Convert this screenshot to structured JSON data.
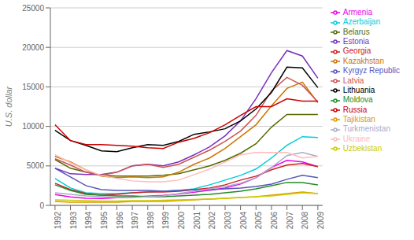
{
  "chart_data": {
    "type": "line",
    "x": [
      1992,
      1993,
      1994,
      1995,
      1996,
      1997,
      1998,
      1999,
      2000,
      2001,
      2002,
      2003,
      2004,
      2005,
      2006,
      2007,
      2008,
      2009
    ],
    "xlim": [
      1991.7,
      2009.3
    ],
    "xticks": [
      1992,
      1993,
      1994,
      1995,
      1996,
      1997,
      1998,
      1999,
      2000,
      2001,
      2002,
      2003,
      2004,
      2005,
      2006,
      2007,
      2008,
      2009
    ],
    "ylabel": "U.S. dollar",
    "ylim": [
      0,
      25000
    ],
    "yticks": [
      0,
      5000,
      10000,
      15000,
      20000,
      25000
    ],
    "grid": true,
    "legend": "right",
    "series": [
      {
        "name": "Armenia",
        "color": "#EE00EE",
        "values": [
          1380,
          1060,
          900,
          870,
          960,
          1070,
          1160,
          1280,
          1450,
          1680,
          1920,
          2200,
          2700,
          3500,
          4800,
          5700,
          5500,
          4900
        ]
      },
      {
        "name": "Azerbaijan",
        "color": "#00CCDD",
        "values": [
          3400,
          2200,
          1600,
          1500,
          1500,
          1600,
          1700,
          1800,
          1900,
          2100,
          2600,
          3200,
          3800,
          4600,
          6000,
          7600,
          8700,
          8600
        ]
      },
      {
        "name": "Belarus",
        "color": "#556B00",
        "values": [
          5800,
          4700,
          4200,
          3800,
          3700,
          3700,
          3700,
          3800,
          4000,
          4500,
          5000,
          5700,
          6600,
          7800,
          9900,
          11500,
          11500,
          11500
        ]
      },
      {
        "name": "Estonia",
        "color": "#7B2FBE",
        "values": [
          4700,
          4000,
          3900,
          3900,
          4200,
          5000,
          5200,
          5000,
          5500,
          6400,
          7400,
          8800,
          10700,
          13500,
          16800,
          19600,
          18900,
          16100
        ]
      },
      {
        "name": "Georgia",
        "color": "#CC2222",
        "values": [
          2800,
          2000,
          1500,
          1300,
          1400,
          1600,
          1700,
          1700,
          1800,
          2000,
          2200,
          2600,
          3200,
          3700,
          4500,
          5100,
          5300,
          4900
        ]
      },
      {
        "name": "Kazakhstan",
        "color": "#CC7700",
        "values": [
          6200,
          5500,
          4500,
          3700,
          3500,
          3600,
          3500,
          3600,
          4200,
          5200,
          6000,
          7200,
          8700,
          10200,
          12600,
          14800,
          15600,
          13000
        ]
      },
      {
        "name": "Kyrgyz Republic",
        "color": "#5555BB",
        "values": [
          4700,
          3600,
          2500,
          2000,
          1900,
          1900,
          1900,
          1800,
          1900,
          2000,
          2000,
          2100,
          2200,
          2400,
          2700,
          3300,
          3800,
          3500
        ]
      },
      {
        "name": "Latvia",
        "color": "#CC5555",
        "values": [
          5900,
          5100,
          4200,
          3800,
          4200,
          5000,
          5200,
          4800,
          5200,
          6100,
          7000,
          8100,
          9400,
          11400,
          14500,
          16200,
          15200,
          13100
        ]
      },
      {
        "name": "Lithuania",
        "color": "#000000",
        "values": [
          9500,
          8200,
          7600,
          6900,
          6800,
          7300,
          7700,
          7600,
          8100,
          9000,
          9300,
          9700,
          10700,
          12200,
          14300,
          17500,
          17400,
          14900
        ]
      },
      {
        "name": "Moldova",
        "color": "#228B22",
        "values": [
          2600,
          1900,
          1400,
          1300,
          1200,
          1200,
          1100,
          1100,
          1200,
          1300,
          1400,
          1600,
          1800,
          2100,
          2500,
          2900,
          2900,
          2600
        ]
      },
      {
        "name": "Russia",
        "color": "#CC0000",
        "values": [
          10200,
          8200,
          7700,
          7700,
          7600,
          7500,
          7300,
          7200,
          8000,
          8500,
          9200,
          10200,
          11400,
          12500,
          12500,
          13500,
          13200,
          13200
        ]
      },
      {
        "name": "Tajikistan",
        "color": "#DD9900",
        "values": [
          500,
          400,
          400,
          400,
          400,
          500,
          500,
          500,
          600,
          700,
          800,
          900,
          1000,
          1100,
          1300,
          1500,
          1700,
          1500
        ]
      },
      {
        "name": "Turkmenistan",
        "color": "#AAAACC",
        "values": [
          1600,
          1400,
          1200,
          1100,
          1000,
          1000,
          1100,
          1200,
          1500,
          1800,
          2100,
          2400,
          2800,
          3500,
          4800,
          6300,
          6700,
          6200
        ]
      },
      {
        "name": "Ukraine",
        "color": "#FFBBBB",
        "values": [
          6400,
          5400,
          4500,
          3800,
          3400,
          3100,
          3000,
          3000,
          3200,
          3900,
          4600,
          5500,
          6400,
          6700,
          6700,
          6700,
          6000,
          6200
        ]
      },
      {
        "name": "Uzbekistan",
        "color": "#CCCC00",
        "values": [
          700,
          650,
          600,
          550,
          550,
          600,
          600,
          650,
          700,
          750,
          800,
          900,
          1000,
          1100,
          1200,
          1400,
          1600,
          1500
        ]
      }
    ]
  }
}
